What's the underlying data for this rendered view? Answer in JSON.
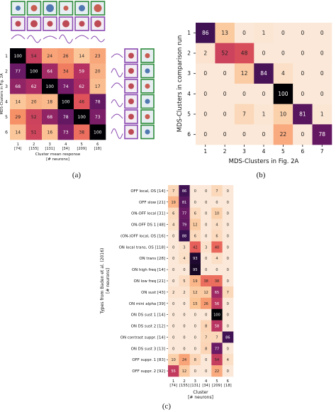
{
  "captions": {
    "a": "(a)",
    "b": "(b)",
    "c": "(c)"
  },
  "panel_a": {
    "row_labels": [
      "1",
      "2",
      "3",
      "4",
      "5",
      "6"
    ],
    "col_labels": [
      "1\n[74]",
      "2\n[155]",
      "3\n[131]",
      "4\n[34]",
      "5\n[209]",
      "6\n[18]"
    ],
    "xlabel": "Cluster mean response\n[# neurons]",
    "ylabel": "MDS-Clusters in Fig. 2A",
    "values": [
      [
        100,
        54,
        24,
        26,
        14,
        23
      ],
      [
        77,
        100,
        64,
        34,
        59,
        20
      ],
      [
        68,
        62,
        100,
        74,
        62,
        17
      ],
      [
        14,
        20,
        18,
        100,
        46,
        78
      ],
      [
        29,
        52,
        68,
        78,
        100,
        73
      ],
      [
        14,
        51,
        16,
        73,
        38,
        100
      ]
    ],
    "thumb_colors": [
      "#2e8b3c",
      "#8a4ab0"
    ]
  },
  "chart_data": [
    {
      "type": "heatmap",
      "title": "",
      "xlabel": "MDS-Clusters in Fig. 2A",
      "ylabel": "MDS-Clusters in comparison run",
      "x_categories": [
        "1",
        "2",
        "3",
        "4",
        "5",
        "6",
        "7"
      ],
      "y_categories": [
        "1",
        "2",
        "3",
        "4",
        "5",
        "6"
      ],
      "values": [
        [
          86,
          13,
          0,
          1,
          0,
          0,
          0
        ],
        [
          2,
          52,
          48,
          0,
          0,
          0,
          0
        ],
        [
          0,
          0,
          12,
          84,
          4,
          0,
          0
        ],
        [
          0,
          0,
          0,
          0,
          100,
          0,
          0
        ],
        [
          0,
          0,
          7,
          1,
          10,
          81,
          1
        ],
        [
          0,
          0,
          0,
          0,
          22,
          0,
          78
        ]
      ]
    },
    {
      "type": "heatmap",
      "title": "",
      "xlabel": "Cluster\n[# neurons]",
      "ylabel": "Types from Baden et al. (2016)\n[# neurons]",
      "x_categories": [
        "1\n[74]",
        "2\n[155]",
        "3\n[131]",
        "4\n[34]",
        "5\n[209]",
        "6\n[18]"
      ],
      "y_categories": [
        "OFF local, OS [14]",
        "OFF slow [21]",
        "ON-OFF local [31]",
        "ON-OFF DS 1 [48]",
        "(ON-)OFF local, OS [16]",
        "ON local trans, OS [118]",
        "ON trans [28]",
        "ON high freq [14]",
        "ON low freq [21]",
        "ON sust [43]",
        "ON mini alpha [39]",
        "ON DS sust 1 [14]",
        "ON DS sust 2 [12]",
        "ON contrast suppr. [14]",
        "ON DS sust 3 [13]",
        "OFF suppr. 1 [83]",
        "OFF suppr. 2 [92]"
      ],
      "values": [
        [
          7,
          86,
          0,
          0,
          7,
          0
        ],
        [
          19,
          81,
          0,
          0,
          0,
          0
        ],
        [
          6,
          77,
          6,
          0,
          10,
          0
        ],
        [
          4,
          79,
          12,
          0,
          4,
          0
        ],
        [
          0,
          88,
          6,
          0,
          6,
          0
        ],
        [
          0,
          3,
          42,
          3,
          40,
          0
        ],
        [
          0,
          4,
          93,
          0,
          4,
          0
        ],
        [
          0,
          0,
          95,
          0,
          0,
          0
        ],
        [
          0,
          5,
          19,
          38,
          38,
          0
        ],
        [
          2,
          2,
          12,
          12,
          65,
          7
        ],
        [
          0,
          0,
          15,
          26,
          56,
          0
        ],
        [
          0,
          0,
          0,
          0,
          100,
          0
        ],
        [
          0,
          0,
          0,
          8,
          58,
          0
        ],
        [
          0,
          0,
          0,
          7,
          7,
          86
        ],
        [
          0,
          0,
          0,
          8,
          77,
          0
        ],
        [
          10,
          24,
          8,
          0,
          54,
          4
        ],
        [
          55,
          12,
          0,
          0,
          22,
          0
        ]
      ]
    }
  ]
}
